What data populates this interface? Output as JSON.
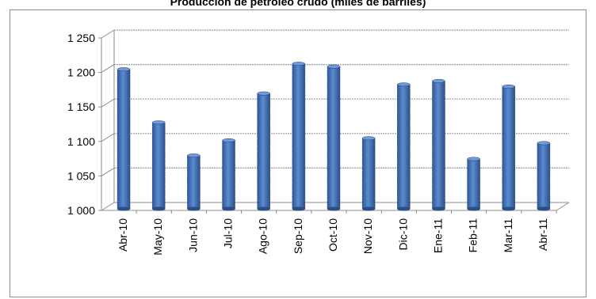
{
  "chart_data": {
    "type": "bar",
    "title": "Producción de petróleo crudo (miles de barriles)",
    "xlabel": "",
    "ylabel": "",
    "categories": [
      "Abr-10",
      "May-10",
      "Jun-10",
      "Jul-10",
      "Ago-10",
      "Sep-10",
      "Oct-10",
      "Nov-10",
      "Dic-10",
      "Ene-11",
      "Feb-11",
      "Mar-11",
      "Abr-11"
    ],
    "values": [
      1200,
      1123,
      1075,
      1097,
      1165,
      1208,
      1204,
      1100,
      1178,
      1183,
      1070,
      1175,
      1093
    ],
    "ylim": [
      1000,
      1250
    ],
    "yticks": [
      1000,
      1050,
      1100,
      1150,
      1200,
      1250
    ],
    "ytick_labels": [
      "1 000",
      "1 050",
      "1 100",
      "1 150",
      "1 200",
      "1 250"
    ],
    "grid": true,
    "legend": "none",
    "bar_color": "#4f81bd"
  }
}
